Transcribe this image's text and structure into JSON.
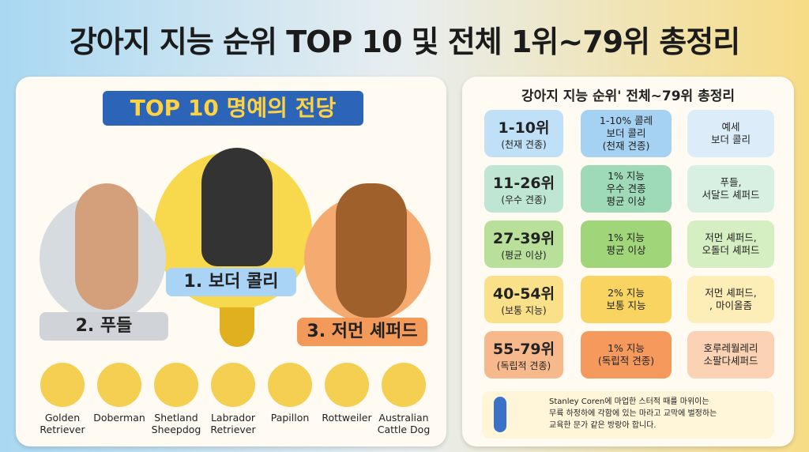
{
  "title": "강아지 지능 순위 TOP 10 및 전체 1위~79위 총정리",
  "left_panel": {
    "banner": "TOP 10 명예의 전당",
    "podium": [
      "1. 보더 콜리",
      "2. 푸들",
      "3. 저먼 셰퍼드"
    ],
    "breeds": [
      "Golden\nRetriever",
      "Doberman",
      "Shetland\nSheepdog",
      "Labrador\nRetriever",
      "Papillon",
      "Rottweiler",
      "Australian\nCattle Dog"
    ]
  },
  "right_panel": {
    "title": "강아지 지능 순위' 전체~79위 총정리",
    "rows": [
      {
        "range": "1-10위",
        "group": "(천재 견종)",
        "desc": "1-10% 콜레\n보더 콜리\n(천재 견종)",
        "example": "예세\n보더 콜리"
      },
      {
        "range": "11-26위",
        "group": "(우수 견종)",
        "desc": "1% 지능\n우수 견종\n평균 이상",
        "example": "푸들,\n서달드 셰퍼드"
      },
      {
        "range": "27-39위",
        "group": "(평균 이상)",
        "desc": "1% 지능\n평균 이상",
        "example": "저먼 셰퍼드,\n오돌더 셰퍼드"
      },
      {
        "range": "40-54위",
        "group": "(보통 지능)",
        "desc": "2% 지능\n보통 지능",
        "example": "저먼 셰퍼드,\n, 마이올좀"
      },
      {
        "range": "55-79위",
        "group": "(독립적 견종)",
        "desc": "1% 지능\n(독립적 견종)",
        "example": "호루레월레리\n소팔다셰퍼드"
      }
    ],
    "note": "Stanley Coren에 마업한 스터적 때를 마위이는\n무륙 하정하에 각함에 있는 마라고 교막에 벌정하는\n교육한 문가 같은 방랑아 합니다."
  }
}
